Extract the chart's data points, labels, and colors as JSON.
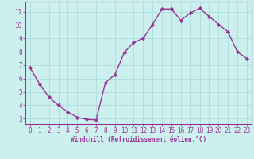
{
  "x": [
    0,
    1,
    2,
    3,
    4,
    5,
    6,
    7,
    8,
    9,
    10,
    11,
    12,
    13,
    14,
    15,
    16,
    17,
    18,
    19,
    20,
    21,
    22,
    23
  ],
  "y": [
    6.8,
    5.6,
    4.6,
    4.0,
    3.5,
    3.1,
    2.95,
    2.9,
    5.7,
    6.3,
    7.95,
    8.7,
    9.0,
    10.05,
    11.2,
    11.2,
    10.35,
    10.9,
    11.25,
    10.65,
    10.05,
    9.5,
    8.0,
    7.5
  ],
  "line_color": "#993399",
  "marker": "D",
  "marker_size": 2.2,
  "bg_color": "#CCF0EE",
  "grid_color": "#AADDDD",
  "xlabel": "Windchill (Refroidissement éolien,°C)",
  "xlabel_color": "#993399",
  "tick_color": "#993399",
  "xlim": [
    -0.5,
    23.5
  ],
  "ylim": [
    2.6,
    11.75
  ],
  "yticks": [
    3,
    4,
    5,
    6,
    7,
    8,
    9,
    10,
    11
  ],
  "xticks": [
    0,
    1,
    2,
    3,
    4,
    5,
    6,
    7,
    8,
    9,
    10,
    11,
    12,
    13,
    14,
    15,
    16,
    17,
    18,
    19,
    20,
    21,
    22,
    23
  ],
  "spine_color": "#993399",
  "linewidth": 1.0,
  "font_size": 5.5
}
